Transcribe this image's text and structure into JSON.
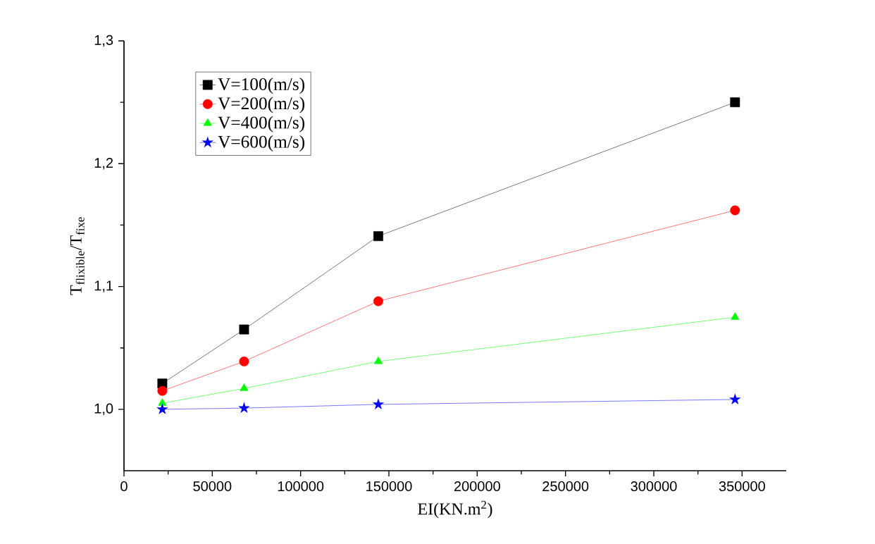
{
  "chart_data": {
    "type": "line",
    "xlabel": "EI(KN.m$^{2}$)",
    "ylabel": "T$_{flixible}$/T$_{fixe}$",
    "x": [
      21700,
      68000,
      144000,
      346000
    ],
    "series": [
      {
        "name": "V=100(m/s)",
        "color": "#000000",
        "marker": "square",
        "values": [
          1.021,
          1.065,
          1.141,
          1.25
        ]
      },
      {
        "name": "V=200(m/s)",
        "color": "#ff0000",
        "marker": "circle",
        "values": [
          1.015,
          1.039,
          1.088,
          1.162
        ]
      },
      {
        "name": "V=400(m/s)",
        "color": "#00ff00",
        "marker": "triangle",
        "values": [
          1.005,
          1.017,
          1.039,
          1.075
        ]
      },
      {
        "name": "V=600(m/s)",
        "color": "#0000ff",
        "marker": "star",
        "values": [
          1.0,
          1.001,
          1.004,
          1.008
        ]
      }
    ],
    "xlim": [
      0,
      375000
    ],
    "xticks": [
      0,
      50000,
      100000,
      150000,
      200000,
      250000,
      300000,
      350000
    ],
    "ylim": [
      0.95,
      1.3
    ],
    "yticks": [
      {
        "value": 1.0,
        "label": "1,0"
      },
      {
        "value": 1.1,
        "label": "1,1"
      },
      {
        "value": 1.2,
        "label": "1,2"
      },
      {
        "value": 1.3,
        "label": "1,3"
      }
    ],
    "grid": false,
    "legend": "top left",
    "line_style": "solid"
  }
}
